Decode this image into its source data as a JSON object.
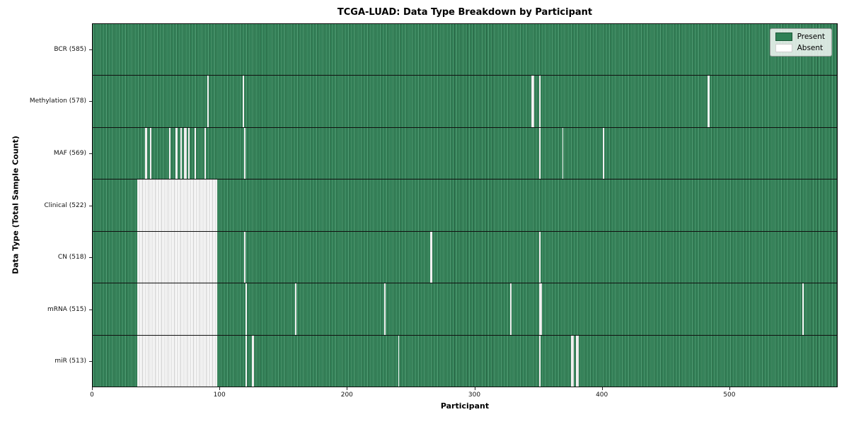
{
  "chart_data": {
    "type": "heatmap",
    "title": "TCGA-LUAD: Data Type Breakdown by Participant",
    "xlabel": "Participant",
    "ylabel": "Data Type (Total Sample Count)",
    "x_ticks": [
      0,
      100,
      200,
      300,
      400,
      500
    ],
    "x_range": [
      0,
      585
    ],
    "n_participants": 585,
    "grid": false,
    "legend_position": "upper right",
    "legend": [
      {
        "label": "Present",
        "value": "present"
      },
      {
        "label": "Absent",
        "value": "absent"
      }
    ],
    "colors": {
      "present": "#2e8055",
      "present_light": "#5aa87e",
      "present_dark": "#1c5737",
      "absent": "#ffffff",
      "absent_stripe": "#c8c8c8",
      "row_divider": "#101010"
    },
    "rows": [
      {
        "label": "BCR (585)",
        "data_type": "BCR",
        "present_count": 585,
        "absent_count": 0,
        "absent_ranges": []
      },
      {
        "label": "Methylation (578)",
        "data_type": "Methylation",
        "present_count": 578,
        "absent_count": 7,
        "absent_ranges": [
          [
            90,
            90
          ],
          [
            118,
            118
          ],
          [
            345,
            346
          ],
          [
            351,
            351
          ],
          [
            483,
            484
          ]
        ]
      },
      {
        "label": "MAF (569)",
        "data_type": "MAF",
        "present_count": 569,
        "absent_count": 16,
        "absent_ranges": [
          [
            41,
            42
          ],
          [
            45,
            45
          ],
          [
            60,
            60
          ],
          [
            65,
            66
          ],
          [
            69,
            69
          ],
          [
            72,
            73
          ],
          [
            75,
            75
          ],
          [
            80,
            80
          ],
          [
            88,
            88
          ],
          [
            119,
            119
          ],
          [
            351,
            351
          ],
          [
            369,
            369
          ],
          [
            401,
            401
          ]
        ]
      },
      {
        "label": "Clinical (522)",
        "data_type": "Clinical",
        "present_count": 522,
        "absent_count": 63,
        "absent_ranges": [
          [
            35,
            97
          ]
        ]
      },
      {
        "label": "CN (518)",
        "data_type": "CN",
        "present_count": 518,
        "absent_count": 67,
        "absent_ranges": [
          [
            35,
            97
          ],
          [
            119,
            119
          ],
          [
            265,
            266
          ],
          [
            351,
            351
          ]
        ]
      },
      {
        "label": "mRNA (515)",
        "data_type": "mRNA",
        "present_count": 515,
        "absent_count": 70,
        "absent_ranges": [
          [
            35,
            97
          ],
          [
            120,
            120
          ],
          [
            159,
            159
          ],
          [
            229,
            229
          ],
          [
            328,
            328
          ],
          [
            351,
            352
          ],
          [
            558,
            558
          ]
        ]
      },
      {
        "label": "miR (513)",
        "data_type": "miR",
        "present_count": 513,
        "absent_count": 72,
        "absent_ranges": [
          [
            35,
            97
          ],
          [
            120,
            120
          ],
          [
            125,
            126
          ],
          [
            240,
            240
          ],
          [
            351,
            351
          ],
          [
            376,
            377
          ],
          [
            380,
            381
          ]
        ]
      }
    ]
  }
}
